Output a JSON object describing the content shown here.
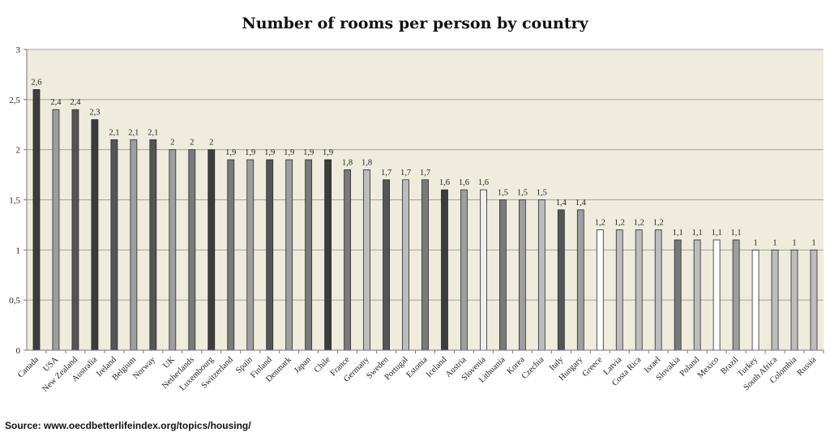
{
  "chart_data": {
    "type": "bar",
    "title": "Number of rooms per person by country",
    "xlabel": "",
    "ylabel": "",
    "ylim": [
      0,
      3
    ],
    "y_ticks": [
      "0",
      "0,5",
      "1",
      "1,5",
      "2",
      "2,5",
      "3"
    ],
    "grid": true,
    "categories": [
      "Canada",
      "USA",
      "New Zealand",
      "Australia",
      "Ireland",
      "Belgium",
      "Norway",
      "UK",
      "Netherlands",
      "Luxembourg",
      "Switzerland",
      "Spain",
      "Finland",
      "Denmark",
      "Japan",
      "Chile",
      "France",
      "Germany",
      "Sweden",
      "Portugal",
      "Estonia",
      "Iceland",
      "Austria",
      "Slovenia",
      "Lithuania",
      "Korea",
      "Czechia",
      "Italy",
      "Hungary",
      "Greece",
      "Latvia",
      "Costa Rica",
      "Israel",
      "Slovakia",
      "Poland",
      "Mexico",
      "Brazil",
      "Turkey",
      "South Africa",
      "Colombia",
      "Russia"
    ],
    "values": [
      2.6,
      2.4,
      2.4,
      2.3,
      2.1,
      2.1,
      2.1,
      2,
      2,
      2,
      1.9,
      1.9,
      1.9,
      1.9,
      1.9,
      1.9,
      1.8,
      1.8,
      1.7,
      1.7,
      1.7,
      1.6,
      1.6,
      1.6,
      1.5,
      1.5,
      1.5,
      1.4,
      1.4,
      1.2,
      1.2,
      1.2,
      1.2,
      1.1,
      1.1,
      1.1,
      1.1,
      1,
      1,
      1,
      1
    ],
    "value_labels": [
      "2,6",
      "2,4",
      "2,4",
      "2,3",
      "2,1",
      "2,1",
      "2,1",
      "2",
      "2",
      "2",
      "1,9",
      "1,9",
      "1,9",
      "1,9",
      "1,9",
      "1,9",
      "1,8",
      "1,8",
      "1,7",
      "1,7",
      "1,7",
      "1,6",
      "1,6",
      "1,6",
      "1,5",
      "1,5",
      "1,5",
      "1,4",
      "1,4",
      "1,2",
      "1,2",
      "1,2",
      "1,2",
      "1,1",
      "1,1",
      "1,1",
      "1,1",
      "1",
      "1",
      "1",
      "1"
    ],
    "bar_colors": [
      "#3c3c3c",
      "#9e9e9e",
      "#555555",
      "#3c3c3c",
      "#555555",
      "#9e9e9e",
      "#555555",
      "#9e9e9e",
      "#7a7a7a",
      "#3c3c3c",
      "#7a7a7a",
      "#9e9e9e",
      "#555555",
      "#9e9e9e",
      "#7a7a7a",
      "#3c3c3c",
      "#7a7a7a",
      "#bdbdbd",
      "#555555",
      "#bdbdbd",
      "#7a7a7a",
      "#3c3c3c",
      "#9e9e9e",
      "#efefef",
      "#7a7a7a",
      "#9e9e9e",
      "#bdbdbd",
      "#555555",
      "#9e9e9e",
      "#ffffff",
      "#bdbdbd",
      "#bdbdbd",
      "#bdbdbd",
      "#7a7a7a",
      "#bdbdbd",
      "#ffffff",
      "#9e9e9e",
      "#ffffff",
      "#bdbdbd",
      "#bdbdbd",
      "#bdbdbd"
    ],
    "plot_background": "#efebdd",
    "gridline_color": "#a0a0a0"
  },
  "source": "Source: www.oecdbetterlifeindex.org/topics/housing/"
}
